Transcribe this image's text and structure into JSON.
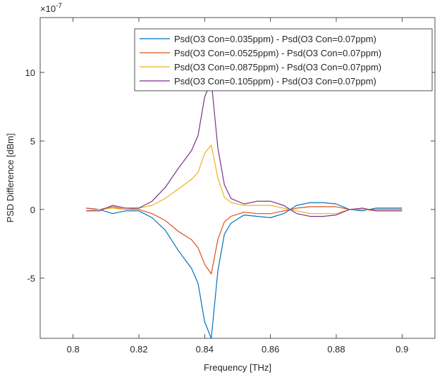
{
  "chart_data": {
    "type": "line",
    "title": "",
    "xlabel": "Frequency [THz]",
    "ylabel": "PSD Difference [dBm]",
    "y_exponent_label": "×10",
    "y_exponent_power": "-7",
    "xlim": [
      0.79,
      0.91
    ],
    "ylim": [
      -9.4,
      14.0
    ],
    "y_scale_factor": 1e-07,
    "xticks": [
      0.8,
      0.82,
      0.84,
      0.86,
      0.88,
      0.9
    ],
    "xtick_labels": [
      "0.8",
      "0.82",
      "0.84",
      "0.86",
      "0.88",
      "0.9"
    ],
    "yticks": [
      -5,
      0,
      5,
      10
    ],
    "ytick_labels": [
      "-5",
      "0",
      "5",
      "10"
    ],
    "grid": false,
    "legend_position": "top-right",
    "x": [
      0.804,
      0.808,
      0.812,
      0.816,
      0.82,
      0.824,
      0.828,
      0.832,
      0.836,
      0.838,
      0.84,
      0.842,
      0.844,
      0.846,
      0.848,
      0.852,
      0.856,
      0.86,
      0.864,
      0.868,
      0.872,
      0.876,
      0.88,
      0.884,
      0.888,
      0.892,
      0.896,
      0.9
    ],
    "series": [
      {
        "name": "Psd(O3 Con=0.035ppm) - Psd(O3 Con=0.07ppm)",
        "color": "#0072BD",
        "values": [
          0.1,
          0.0,
          -0.3,
          -0.1,
          -0.1,
          -0.6,
          -1.5,
          -3.0,
          -4.3,
          -5.4,
          -8.2,
          -9.4,
          -4.5,
          -1.8,
          -1.0,
          -0.4,
          -0.5,
          -0.6,
          -0.3,
          0.3,
          0.5,
          0.5,
          0.4,
          0.0,
          -0.1,
          0.1,
          0.1,
          0.1
        ]
      },
      {
        "name": "Psd(O3 Con=0.0525ppm) - Psd(O3 Con=0.07ppm)",
        "color": "#D95319",
        "values": [
          0.1,
          0.0,
          0.2,
          0.0,
          0.0,
          -0.3,
          -0.8,
          -1.6,
          -2.2,
          -2.8,
          -4.0,
          -4.7,
          -2.2,
          -0.9,
          -0.5,
          -0.2,
          -0.3,
          -0.3,
          -0.1,
          0.1,
          0.2,
          0.2,
          0.2,
          0.0,
          0.0,
          0.0,
          0.0,
          0.0
        ]
      },
      {
        "name": "Psd(O3 Con=0.0875ppm) - Psd(O3 Con=0.07ppm)",
        "color": "#EDB120",
        "values": [
          -0.1,
          0.0,
          0.1,
          0.0,
          0.1,
          0.3,
          0.8,
          1.5,
          2.2,
          2.7,
          4.1,
          4.7,
          2.3,
          0.9,
          0.5,
          0.3,
          0.3,
          0.3,
          0.1,
          -0.1,
          -0.3,
          -0.3,
          -0.3,
          0.0,
          0.0,
          -0.1,
          -0.1,
          -0.1
        ]
      },
      {
        "name": "Psd(O3 Con=0.105ppm) - Psd(O3 Con=0.07ppm)",
        "color": "#7E2F8E",
        "values": [
          -0.1,
          -0.1,
          0.3,
          0.1,
          0.1,
          0.6,
          1.6,
          3.0,
          4.3,
          5.4,
          8.2,
          9.4,
          4.5,
          1.8,
          0.8,
          0.4,
          0.6,
          0.6,
          0.3,
          -0.3,
          -0.5,
          -0.5,
          -0.4,
          0.0,
          0.1,
          -0.1,
          -0.1,
          -0.1
        ]
      }
    ]
  }
}
